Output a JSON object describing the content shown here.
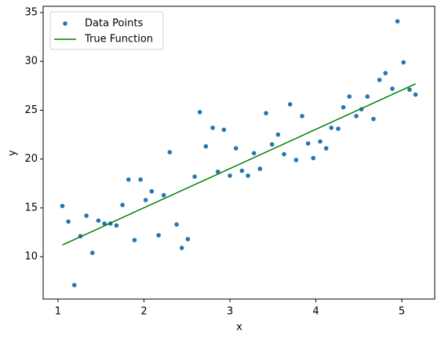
{
  "chart_data": {
    "type": "scatter",
    "xlabel": "x",
    "ylabel": "y",
    "xlim": [
      0.827,
      5.383
    ],
    "ylim": [
      5.67,
      35.64
    ],
    "xticks": [
      1,
      2,
      3,
      4,
      5
    ],
    "yticks": [
      10,
      15,
      20,
      25,
      30,
      35
    ],
    "grid": false,
    "legend": "upper left",
    "series": [
      {
        "name": "Data Points",
        "color": "#1f77b4",
        "style": "points",
        "x": [
          1.05,
          1.12,
          1.19,
          1.26,
          1.33,
          1.4,
          1.47,
          1.54,
          1.61,
          1.68,
          1.75,
          1.82,
          1.89,
          1.96,
          2.02,
          2.09,
          2.17,
          2.23,
          2.3,
          2.38,
          2.44,
          2.51,
          2.59,
          2.65,
          2.72,
          2.8,
          2.86,
          2.93,
          3.0,
          3.07,
          3.14,
          3.21,
          3.28,
          3.35,
          3.42,
          3.49,
          3.56,
          3.63,
          3.7,
          3.77,
          3.84,
          3.91,
          3.97,
          4.05,
          4.12,
          4.18,
          4.26,
          4.32,
          4.39,
          4.47,
          4.53,
          4.6,
          4.67,
          4.74,
          4.81,
          4.89,
          4.95,
          5.02,
          5.09,
          5.16
        ],
        "values": [
          15.2,
          13.6,
          7.1,
          12.1,
          14.2,
          10.4,
          13.7,
          13.4,
          13.4,
          13.2,
          15.3,
          17.9,
          11.7,
          17.9,
          15.8,
          16.7,
          12.2,
          16.3,
          20.7,
          13.3,
          10.9,
          11.8,
          18.2,
          24.8,
          21.3,
          23.2,
          18.7,
          23.0,
          18.3,
          21.1,
          18.8,
          18.3,
          20.6,
          19.0,
          24.7,
          21.5,
          22.5,
          20.5,
          25.6,
          19.9,
          24.4,
          21.6,
          20.1,
          21.8,
          21.1,
          23.2,
          23.1,
          25.3,
          26.4,
          24.4,
          25.1,
          26.4,
          24.1,
          28.1,
          28.8,
          27.2,
          34.1,
          29.9,
          27.1,
          26.6
        ]
      },
      {
        "name": "True Function",
        "color": "#008000",
        "style": "line",
        "x": [
          1.05,
          5.16
        ],
        "values": [
          11.2,
          27.7
        ]
      }
    ]
  }
}
